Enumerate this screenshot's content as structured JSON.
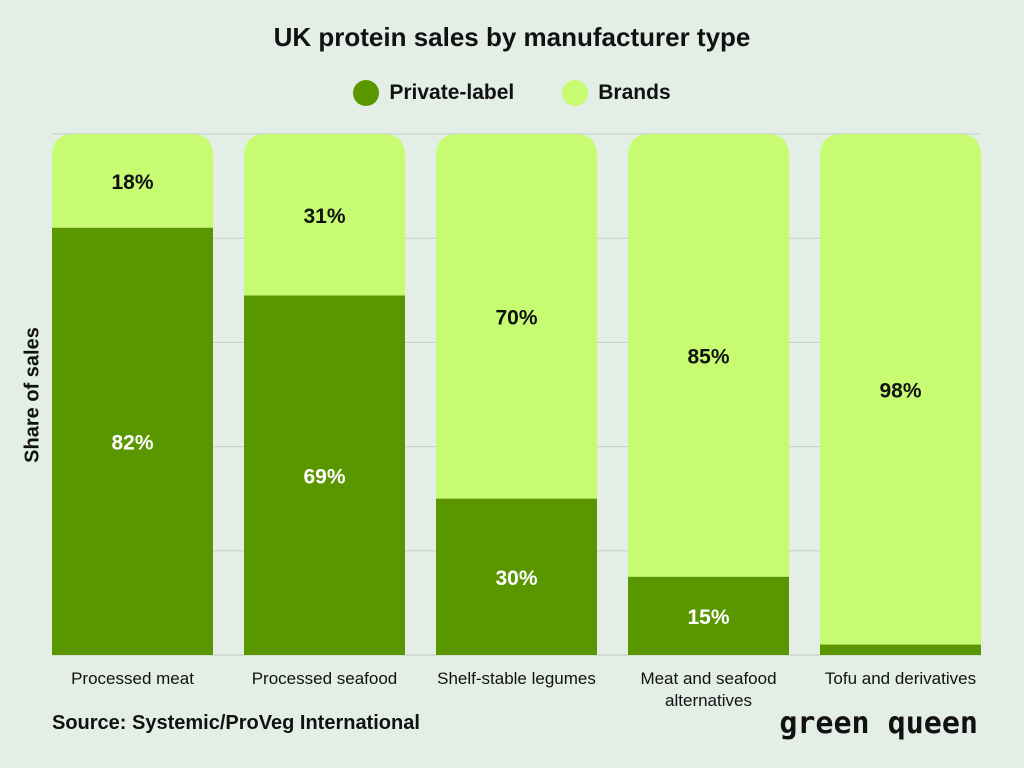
{
  "chart_data": {
    "type": "bar",
    "stacked": true,
    "title": "UK protein sales by manufacturer type",
    "ylabel": "Share of sales",
    "xlabel": "",
    "ylim": [
      0,
      100
    ],
    "grid": true,
    "legend_position": "top-center",
    "categories": [
      "Processed meat",
      "Processed seafood",
      "Shelf-stable legumes",
      "Meat and seafood alternatives",
      "Tofu and derivatives"
    ],
    "series": [
      {
        "name": "Private-label",
        "color": "#5a9600",
        "label_color": "#ffffff",
        "values": [
          82,
          69,
          30,
          15,
          2
        ],
        "labels": [
          "82%",
          "69%",
          "30%",
          "15%",
          ""
        ]
      },
      {
        "name": "Brands",
        "color": "#c6fb72",
        "label_color": "#111111",
        "values": [
          18,
          31,
          70,
          85,
          98
        ],
        "labels": [
          "18%",
          "31%",
          "70%",
          "85%",
          "98%"
        ]
      }
    ]
  },
  "footer": {
    "source": "Source: Systemic/ProVeg International",
    "logo_text": "green queen"
  },
  "colors": {
    "background": "#e3eee6",
    "gridline": "#c3cdc6"
  }
}
